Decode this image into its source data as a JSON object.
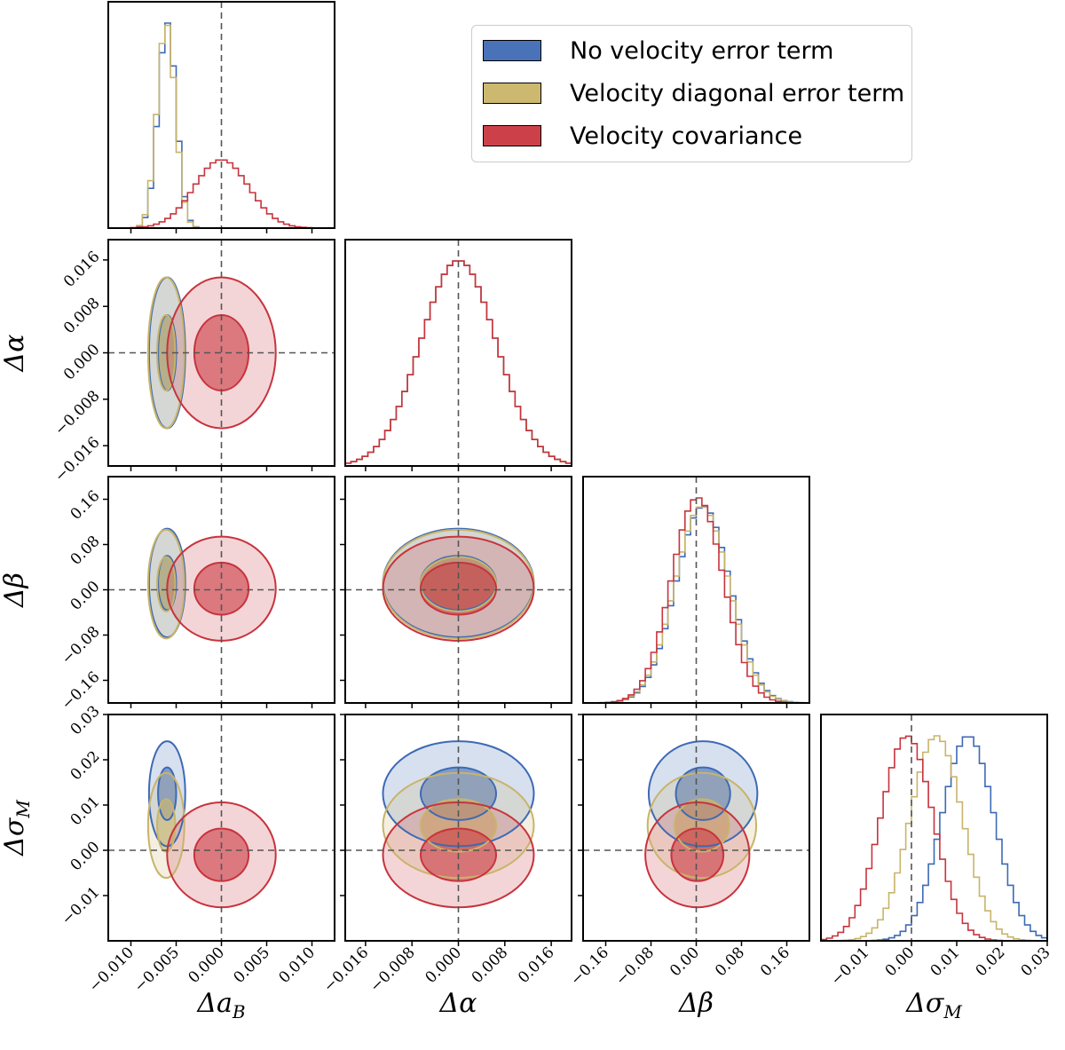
{
  "chart_data": {
    "type": "corner",
    "parameters": [
      {
        "symbol": "Δa",
        "sub": "B",
        "label": "Δa_B",
        "range": [
          -0.0125,
          0.0125
        ],
        "ticks": [
          -0.01,
          -0.005,
          0.0,
          0.005,
          0.01
        ],
        "tick_labels": [
          "−0.010",
          "−0.005",
          "0.000",
          "0.005",
          "0.010"
        ]
      },
      {
        "symbol": "Δα",
        "sub": "",
        "label": "Δα",
        "range": [
          -0.0195,
          0.0195
        ],
        "ticks": [
          -0.016,
          -0.008,
          0.0,
          0.008,
          0.016
        ],
        "tick_labels": [
          "−0.016",
          "−0.008",
          "0.000",
          "0.008",
          "0.016"
        ]
      },
      {
        "symbol": "Δβ",
        "sub": "",
        "label": "Δβ",
        "range": [
          -0.2,
          0.2
        ],
        "ticks": [
          -0.16,
          -0.08,
          0.0,
          0.08,
          0.16
        ],
        "tick_labels": [
          "−0.16",
          "−0.08",
          "0.00",
          "0.08",
          "0.16"
        ]
      },
      {
        "symbol": "Δσ",
        "sub": "M",
        "label": "Δσ_M",
        "range": [
          -0.02,
          0.03
        ],
        "ticks": [
          -0.01,
          0.0,
          0.01,
          0.02,
          0.03
        ],
        "tick_labels": [
          "−0.01",
          "0.00",
          "0.01",
          "0.02",
          "0.03"
        ]
      }
    ],
    "truth": [
      0,
      0,
      0,
      0
    ],
    "series": [
      {
        "name": "No velocity error term",
        "color": "#3d6ab5",
        "fill": "#4a72b8",
        "mean": [
          -0.006,
          0.0,
          0.012,
          0.0125
        ],
        "sigma": [
          0.001,
          0.0065,
          0.048,
          0.0058
        ]
      },
      {
        "name": "Velocity diagonal error term",
        "color": "#c8b46a",
        "fill": "#cdb870",
        "mean": [
          -0.0061,
          0.0,
          0.01,
          0.0055
        ],
        "sigma": [
          0.001,
          0.0065,
          0.048,
          0.0058
        ]
      },
      {
        "name": "Velocity covariance",
        "color": "#c8333d",
        "fill": "#cc4149",
        "mean": [
          0.0,
          0.0,
          0.002,
          -0.001
        ],
        "sigma": [
          0.003,
          0.0065,
          0.046,
          0.0058
        ]
      }
    ],
    "contour_levels": [
      "1-sigma (filled, darker)",
      "2-sigma (filled, lighter)"
    ],
    "legend_position": "top-right",
    "grid": false
  },
  "legend": {
    "items": [
      {
        "label": "No velocity error term",
        "color": "#4a72b8"
      },
      {
        "label": "Velocity diagonal error term",
        "color": "#cdb870"
      },
      {
        "label": "Velocity covariance",
        "color": "#cc4149"
      }
    ]
  }
}
